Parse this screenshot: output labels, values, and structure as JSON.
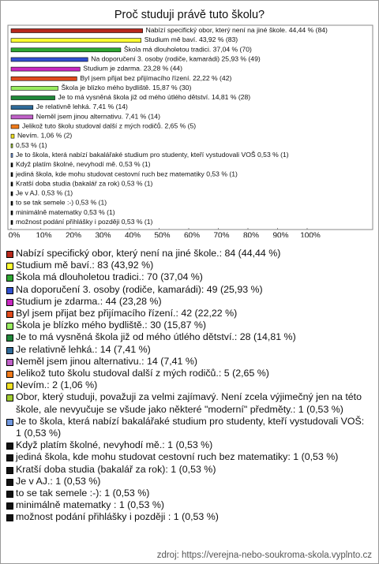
{
  "chart_data": {
    "type": "bar",
    "orientation": "horizontal",
    "title": "Proč studuji právě tuto školu?",
    "categories": [
      "Nabízí specifický obor, který není na jiné škole.",
      "Studium mě baví.",
      "Škola má dlouholetou tradici.",
      "Na doporučení 3. osoby (rodiče, kamarádi)",
      "Studium je zdarma.",
      "Byl jsem přijat bez přijímacího řízení.",
      "Škola je blízko mého bydliště.",
      "Je to má vysněná škola již od mého útlého dětství.",
      "Je relativně lehká.",
      "Neměl jsem jinou alternativu.",
      "Jelikož tuto školu studoval další z mých rodičů.",
      "Nevím.",
      null,
      "Je to škola, která nabízí bakalářaké studium pro studenty, kteří vystudovali VOŠ",
      "Když platím školné, nevyhodí mě.",
      "jediná škola, kde mohu studovat cestovní ruch bez matematiky",
      "Kratší doba studia (bakalář za rok)",
      "Je v AJ.",
      "to se tak semele :-)",
      "minimálně matematky ",
      "možnost podání přihlášky i později"
    ],
    "values": [
      44.44,
      43.92,
      37.04,
      25.93,
      23.28,
      22.22,
      15.87,
      14.81,
      7.41,
      7.41,
      2.65,
      1.06,
      0.53,
      0.53,
      0.53,
      0.53,
      0.53,
      0.53,
      0.53,
      0.53,
      0.53
    ],
    "value_labels": [
      "44,44 % (84)",
      "43,92 % (83)",
      "37,04 % (70)",
      "25,93 % (49)",
      "23,28 % (44)",
      "22,22 % (42)",
      "15,87 % (30)",
      "14,81 % (28)",
      "7,41 % (14)",
      "7,41 % (14)",
      "2,65 % (5)",
      "1,06 % (2)",
      "0,53 % (1)",
      "0,53 % (1)",
      "0,53 % (1)",
      "0,53 % (1)",
      "0,53 % (1)",
      "0,53 % (1)",
      "0,53 % (1)",
      "0,53 % (1)",
      "0,53 % (1)"
    ],
    "colors": [
      "#b8281c",
      "#ffff30",
      "#2ea832",
      "#3050d0",
      "#c828c0",
      "#e04a1c",
      "#98ec60",
      "#20883a",
      "#2f6a98",
      "#c060c8",
      "#f07a1a",
      "#f0e020",
      "#a0cc30",
      "#7098e0",
      "#111111",
      "#111111",
      "#111111",
      "#111111",
      "#111111",
      "#111111",
      "#111111"
    ],
    "legend": [
      "Nabízí specifický obor, který není na jiné škole.: 84 (44,44 %)",
      "Studium mě baví.: 83 (43,92 %)",
      "Škola má dlouholetou tradici.: 70 (37,04 %)",
      "Na doporučení 3. osoby (rodiče, kamarádi): 49 (25,93 %)",
      "Studium je zdarma.: 44 (23,28 %)",
      "Byl jsem přijat bez přijímacího řízení.: 42 (22,22 %)",
      "Škola je blízko mého bydliště.: 30 (15,87 %)",
      "Je to má vysněná škola již od mého útlého dětství.: 28 (14,81 %)",
      "Je relativně lehká.: 14 (7,41 %)",
      "Neměl jsem jinou alternativu.: 14 (7,41 %)",
      "Jelikož tuto školu studoval další z mých rodičů.: 5 (2,65 %)",
      "Nevím.: 2 (1,06 %)",
      "Obor, který studuji, považuji za velmi zajímavý. Není zcela výjimečný jen na této škole, ale nevyučuje se všude jako některé \"moderní\" předměty.: 1 (0,53 %)",
      "Je to škola, která nabízí bakalářaké studium pro studenty, kteří vystudovali VOŠ: 1 (0,53 %)",
      "Když platím školné, nevyhodí mě.: 1 (0,53 %)",
      "jediná škola, kde mohu studovat cestovní ruch bez matematiky: 1 (0,53 %)",
      "Kratší doba studia (bakalář za rok): 1 (0,53 %)",
      "Je v AJ.: 1 (0,53 %)",
      "to se tak semele :-): 1 (0,53 %)",
      "minimálně matematky : 1 (0,53 %)",
      "možnost podání přihlášky i později : 1 (0,53 %)"
    ],
    "xlim": [
      0,
      100
    ],
    "xticks": [
      {
        "value": 0,
        "label": "0%"
      },
      {
        "value": 10,
        "label": "10%"
      },
      {
        "value": 20,
        "label": "20%"
      },
      {
        "value": 30,
        "label": "30%"
      },
      {
        "value": 40,
        "label": "40%"
      },
      {
        "value": 50,
        "label": "50%"
      },
      {
        "value": 60,
        "label": "60%"
      },
      {
        "value": 70,
        "label": "70%"
      },
      {
        "value": 80,
        "label": "80%"
      },
      {
        "value": 90,
        "label": "90%"
      },
      {
        "value": 100,
        "label": "100%"
      }
    ],
    "source": "zdroj: https://verejna-nebo-soukroma-skola.vyplnto.cz"
  }
}
